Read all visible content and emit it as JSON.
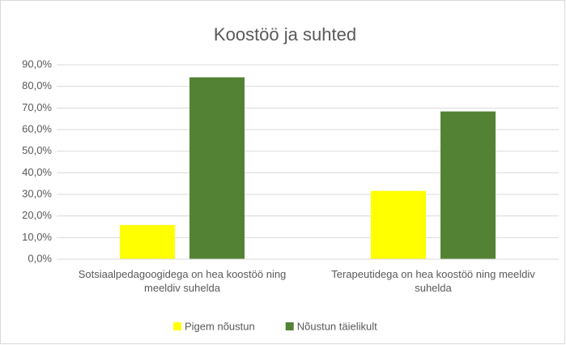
{
  "chart_data": {
    "type": "bar",
    "title": "Koostöö ja suhted",
    "categories": [
      "Sotsiaalpedagoogidega on hea koostöö ning meeldiv suhelda",
      "Terapeutidega on hea koostöö ning meeldiv suhelda"
    ],
    "series": [
      {
        "name": "Pigem nõustun",
        "color": "#ffff00",
        "values": [
          15.8,
          31.6
        ]
      },
      {
        "name": "Nõustun täielikult",
        "color": "#548235",
        "values": [
          84.2,
          68.4
        ]
      }
    ],
    "ylim": [
      0,
      90
    ],
    "yticks": [
      {
        "value": 0,
        "label": "0,0%"
      },
      {
        "value": 10,
        "label": "10,0%"
      },
      {
        "value": 20,
        "label": "20,0%"
      },
      {
        "value": 30,
        "label": "30,0%"
      },
      {
        "value": 40,
        "label": "40,0%"
      },
      {
        "value": 50,
        "label": "50,0%"
      },
      {
        "value": 60,
        "label": "60,0%"
      },
      {
        "value": 70,
        "label": "70,0%"
      },
      {
        "value": 80,
        "label": "80,0%"
      },
      {
        "value": 90,
        "label": "90,0%"
      }
    ],
    "grid": true,
    "legend": "bottom"
  }
}
